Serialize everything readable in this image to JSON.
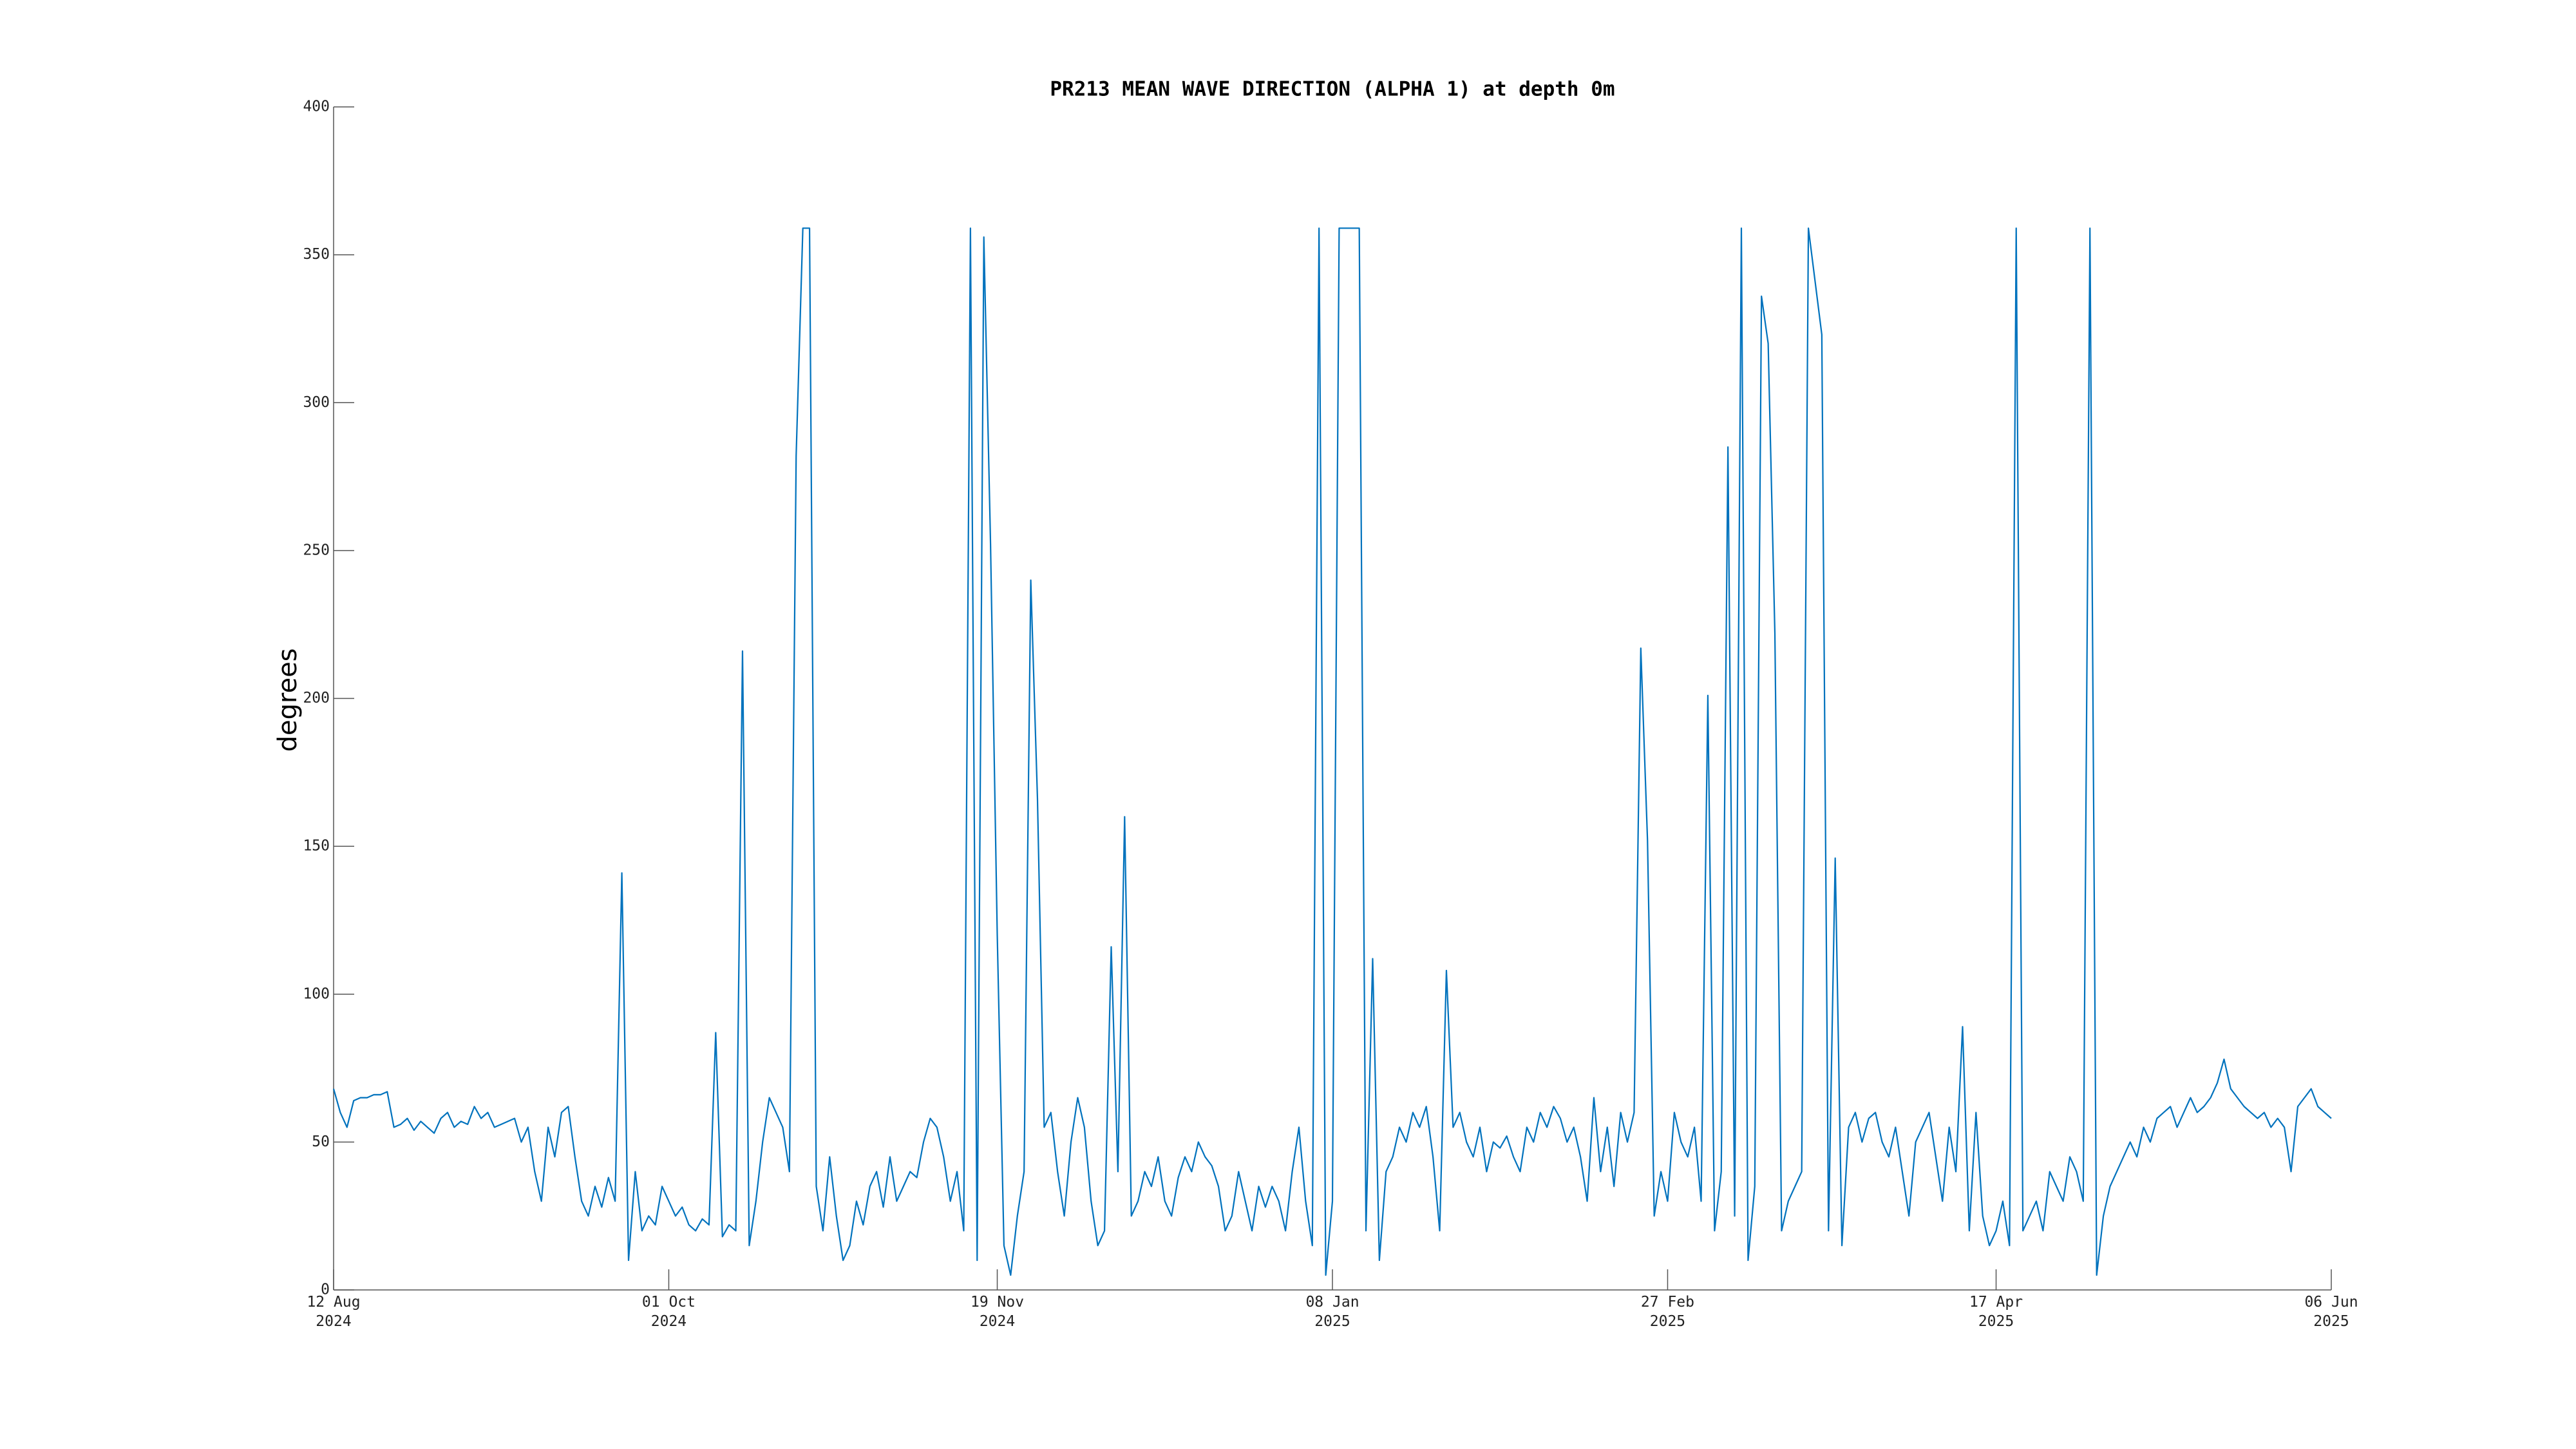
{
  "chart_data": {
    "type": "line",
    "title": "PR213 MEAN WAVE DIRECTION (ALPHA 1) at depth 0m",
    "y_label": "degrees",
    "color": "#0072bd",
    "x": [
      "2024-08-12",
      "2024-08-13",
      "2024-08-14",
      "2024-08-15",
      "2024-08-16",
      "2024-08-17",
      "2024-08-18",
      "2024-08-19",
      "2024-08-20",
      "2024-08-21",
      "2024-08-22",
      "2024-08-23",
      "2024-08-24",
      "2024-08-25",
      "2024-08-26",
      "2024-08-27",
      "2024-08-28",
      "2024-08-29",
      "2024-08-30",
      "2024-08-31",
      "2024-09-01",
      "2024-09-02",
      "2024-09-03",
      "2024-09-04",
      "2024-09-05",
      "2024-09-06",
      "2024-09-07",
      "2024-09-08",
      "2024-09-09",
      "2024-09-10",
      "2024-09-11",
      "2024-09-12",
      "2024-09-13",
      "2024-09-14",
      "2024-09-15",
      "2024-09-16",
      "2024-09-17",
      "2024-09-18",
      "2024-09-19",
      "2024-09-20",
      "2024-09-21",
      "2024-09-22",
      "2024-09-23",
      "2024-09-24",
      "2024-09-25",
      "2024-09-26",
      "2024-09-27",
      "2024-09-28",
      "2024-09-29",
      "2024-09-30",
      "2024-10-01",
      "2024-10-02",
      "2024-10-03",
      "2024-10-04",
      "2024-10-05",
      "2024-10-06",
      "2024-10-07",
      "2024-10-08",
      "2024-10-09",
      "2024-10-10",
      "2024-10-11",
      "2024-10-12",
      "2024-10-13",
      "2024-10-14",
      "2024-10-15",
      "2024-10-16",
      "2024-10-17",
      "2024-10-18",
      "2024-10-19",
      "2024-10-20",
      "2024-10-21",
      "2024-10-22",
      "2024-10-23",
      "2024-10-24",
      "2024-10-25",
      "2024-10-26",
      "2024-10-27",
      "2024-10-28",
      "2024-10-29",
      "2024-10-30",
      "2024-10-31",
      "2024-11-01",
      "2024-11-02",
      "2024-11-03",
      "2024-11-04",
      "2024-11-05",
      "2024-11-06",
      "2024-11-07",
      "2024-11-08",
      "2024-11-09",
      "2024-11-10",
      "2024-11-11",
      "2024-11-12",
      "2024-11-13",
      "2024-11-14",
      "2024-11-15",
      "2024-11-16",
      "2024-11-17",
      "2024-11-18",
      "2024-11-19",
      "2024-11-20",
      "2024-11-21",
      "2024-11-22",
      "2024-11-23",
      "2024-11-24",
      "2024-11-25",
      "2024-11-26",
      "2024-11-27",
      "2024-11-28",
      "2024-11-29",
      "2024-11-30",
      "2024-12-01",
      "2024-12-02",
      "2024-12-03",
      "2024-12-04",
      "2024-12-05",
      "2024-12-06",
      "2024-12-07",
      "2024-12-08",
      "2024-12-09",
      "2024-12-10",
      "2024-12-11",
      "2024-12-12",
      "2024-12-13",
      "2024-12-14",
      "2024-12-15",
      "2024-12-16",
      "2024-12-17",
      "2024-12-18",
      "2024-12-19",
      "2024-12-20",
      "2024-12-21",
      "2024-12-22",
      "2024-12-23",
      "2024-12-24",
      "2024-12-25",
      "2024-12-26",
      "2024-12-27",
      "2024-12-28",
      "2024-12-29",
      "2024-12-30",
      "2024-12-31",
      "2025-01-01",
      "2025-01-02",
      "2025-01-03",
      "2025-01-04",
      "2025-01-05",
      "2025-01-06",
      "2025-01-07",
      "2025-01-08",
      "2025-01-09",
      "2025-01-10",
      "2025-01-11",
      "2025-01-12",
      "2025-01-13",
      "2025-01-14",
      "2025-01-15",
      "2025-01-16",
      "2025-01-17",
      "2025-01-18",
      "2025-01-19",
      "2025-01-20",
      "2025-01-21",
      "2025-01-22",
      "2025-01-23",
      "2025-01-24",
      "2025-01-25",
      "2025-01-26",
      "2025-01-27",
      "2025-01-28",
      "2025-01-29",
      "2025-01-30",
      "2025-01-31",
      "2025-02-01",
      "2025-02-02",
      "2025-02-03",
      "2025-02-04",
      "2025-02-05",
      "2025-02-06",
      "2025-02-07",
      "2025-02-08",
      "2025-02-09",
      "2025-02-10",
      "2025-02-11",
      "2025-02-12",
      "2025-02-13",
      "2025-02-14",
      "2025-02-15",
      "2025-02-16",
      "2025-02-17",
      "2025-02-18",
      "2025-02-19",
      "2025-02-20",
      "2025-02-21",
      "2025-02-22",
      "2025-02-23",
      "2025-02-24",
      "2025-02-25",
      "2025-02-26",
      "2025-02-27",
      "2025-02-28",
      "2025-03-01",
      "2025-03-02",
      "2025-03-03",
      "2025-03-04",
      "2025-03-05",
      "2025-03-06",
      "2025-03-07",
      "2025-03-08",
      "2025-03-09",
      "2025-03-10",
      "2025-03-11",
      "2025-03-12",
      "2025-03-13",
      "2025-03-14",
      "2025-03-15",
      "2025-03-16",
      "2025-03-17",
      "2025-03-18",
      "2025-03-19",
      "2025-03-20",
      "2025-03-21",
      "2025-03-22",
      "2025-03-23",
      "2025-03-24",
      "2025-03-25",
      "2025-03-26",
      "2025-03-27",
      "2025-03-28",
      "2025-03-29",
      "2025-03-30",
      "2025-03-31",
      "2025-04-01",
      "2025-04-02",
      "2025-04-03",
      "2025-04-04",
      "2025-04-05",
      "2025-04-06",
      "2025-04-07",
      "2025-04-08",
      "2025-04-09",
      "2025-04-10",
      "2025-04-11",
      "2025-04-12",
      "2025-04-13",
      "2025-04-14",
      "2025-04-15",
      "2025-04-16",
      "2025-04-17",
      "2025-04-18",
      "2025-04-19",
      "2025-04-20",
      "2025-04-21",
      "2025-04-22",
      "2025-04-23",
      "2025-04-24",
      "2025-04-25",
      "2025-04-26",
      "2025-04-27",
      "2025-04-28",
      "2025-04-29",
      "2025-04-30",
      "2025-05-01",
      "2025-05-02",
      "2025-05-03",
      "2025-05-04",
      "2025-05-05",
      "2025-05-06",
      "2025-05-07",
      "2025-05-08",
      "2025-05-09",
      "2025-05-10",
      "2025-05-11",
      "2025-05-12",
      "2025-05-13",
      "2025-05-14",
      "2025-05-15",
      "2025-05-16",
      "2025-05-17",
      "2025-05-18",
      "2025-05-19",
      "2025-05-20",
      "2025-05-21",
      "2025-05-22",
      "2025-05-23",
      "2025-05-24",
      "2025-05-25",
      "2025-05-26",
      "2025-05-27",
      "2025-05-28",
      "2025-05-29",
      "2025-05-30",
      "2025-05-31",
      "2025-06-01",
      "2025-06-02",
      "2025-06-03",
      "2025-06-04",
      "2025-06-05",
      "2025-06-06"
    ],
    "values": [
      68,
      60,
      55,
      64,
      65,
      65,
      66,
      66,
      67,
      55,
      56,
      58,
      54,
      57,
      55,
      53,
      58,
      60,
      55,
      57,
      56,
      62,
      58,
      60,
      55,
      56,
      57,
      58,
      50,
      55,
      40,
      30,
      55,
      45,
      60,
      62,
      45,
      30,
      25,
      35,
      28,
      38,
      30,
      141,
      10,
      40,
      20,
      25,
      22,
      35,
      30,
      25,
      28,
      22,
      20,
      24,
      22,
      87,
      18,
      22,
      20,
      216,
      15,
      30,
      50,
      65,
      60,
      55,
      40,
      282,
      359,
      359,
      35,
      20,
      45,
      25,
      10,
      15,
      30,
      22,
      35,
      40,
      28,
      45,
      30,
      35,
      40,
      38,
      50,
      58,
      55,
      45,
      30,
      40,
      20,
      359,
      10,
      356,
      252,
      120,
      15,
      5,
      25,
      40,
      240,
      166,
      55,
      60,
      40,
      25,
      50,
      65,
      55,
      30,
      15,
      20,
      116,
      40,
      160,
      25,
      30,
      40,
      35,
      45,
      30,
      25,
      38,
      45,
      40,
      50,
      45,
      42,
      35,
      20,
      25,
      40,
      30,
      20,
      35,
      28,
      35,
      30,
      20,
      40,
      55,
      30,
      15,
      359,
      5,
      30,
      359,
      359,
      359,
      359,
      20,
      112,
      10,
      40,
      45,
      55,
      50,
      60,
      55,
      62,
      45,
      20,
      108,
      55,
      60,
      50,
      45,
      55,
      40,
      50,
      48,
      52,
      45,
      40,
      55,
      50,
      60,
      55,
      62,
      58,
      50,
      55,
      45,
      30,
      65,
      40,
      55,
      35,
      60,
      50,
      60,
      217,
      152,
      25,
      40,
      30,
      60,
      50,
      45,
      55,
      30,
      201,
      20,
      40,
      285,
      25,
      359,
      10,
      35,
      336,
      320,
      222,
      20,
      30,
      35,
      40,
      359,
      341,
      323,
      20,
      146,
      15,
      55,
      60,
      50,
      58,
      60,
      50,
      45,
      55,
      40,
      25,
      50,
      55,
      60,
      45,
      30,
      55,
      40,
      89,
      20,
      60,
      25,
      15,
      20,
      30,
      15,
      359,
      20,
      25,
      30,
      20,
      40,
      35,
      30,
      45,
      40,
      30,
      359,
      5,
      25,
      35,
      40,
      45,
      50,
      45,
      55,
      50,
      58,
      60,
      62,
      55,
      60,
      65,
      60,
      62,
      65,
      70,
      78,
      68,
      65,
      62,
      60,
      58,
      60,
      55,
      58,
      55,
      40,
      62,
      65,
      68,
      62,
      60,
      58
    ],
    "xlim": [
      "2024-08-12",
      "2025-06-06"
    ],
    "xticks": [
      {
        "value": "2024-08-12",
        "label": "12 Aug\n2024"
      },
      {
        "value": "2024-10-01",
        "label": "01 Oct\n2024"
      },
      {
        "value": "2024-11-19",
        "label": "19 Nov\n2024"
      },
      {
        "value": "2025-01-08",
        "label": "08 Jan\n2025"
      },
      {
        "value": "2025-02-27",
        "label": "27 Feb\n2025"
      },
      {
        "value": "2025-04-17",
        "label": "17 Apr\n2025"
      },
      {
        "value": "2025-06-06",
        "label": "06 Jun\n2025"
      }
    ],
    "ylim": [
      0,
      400
    ],
    "yticks": [
      0,
      50,
      100,
      150,
      200,
      250,
      300,
      350,
      400
    ],
    "grid": false
  }
}
